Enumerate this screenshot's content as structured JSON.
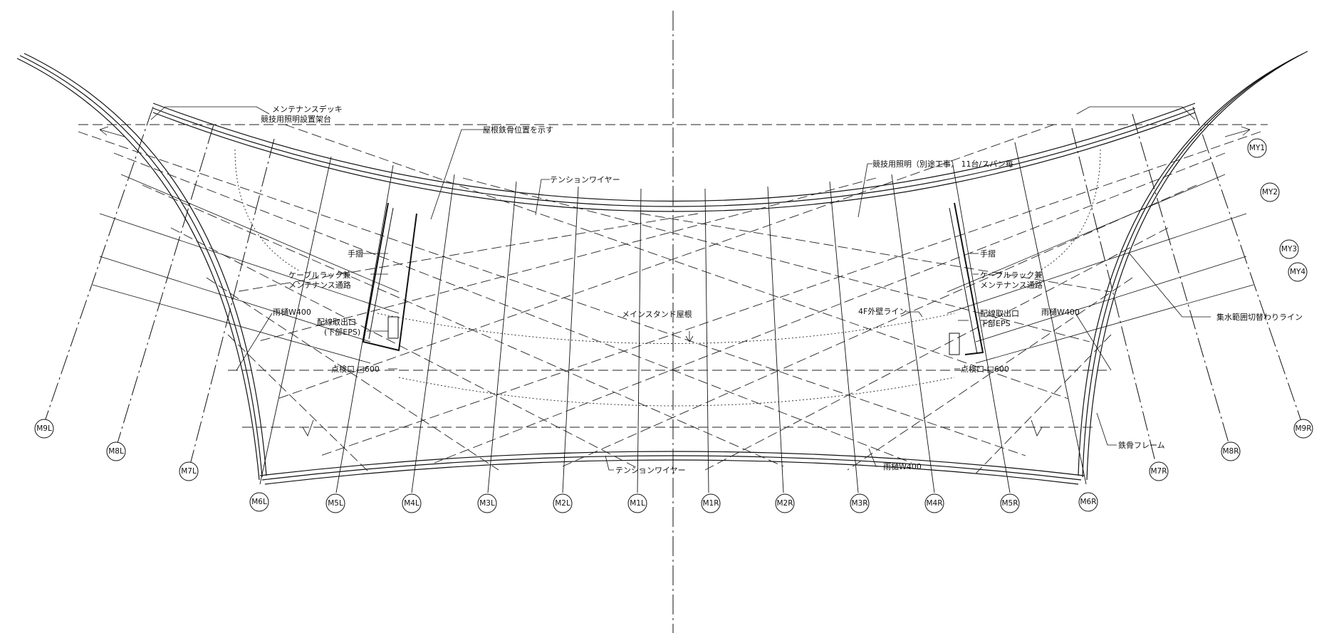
{
  "grid_bubbles": {
    "bottom": [
      "M6L",
      "M5L",
      "M4L",
      "M3L",
      "M2L",
      "M1L",
      "M1R",
      "M2R",
      "M3R",
      "M4R",
      "M5R",
      "M6R"
    ],
    "left_outer": [
      "M9L",
      "M8L",
      "M7L"
    ],
    "right_outer": [
      "M7R",
      "M8R",
      "M9R"
    ],
    "right_side": [
      "MY1",
      "MY2",
      "MY3",
      "MY4"
    ]
  },
  "labels": {
    "maintenance_deck_1": "メンテナンスデッキ",
    "maintenance_deck_2": "競技用照明設置架台",
    "roof_steel": "屋根鉄骨位置を示す",
    "tension_wire_top": "テンションワイヤー",
    "lighting": "競技用照明（別途工事） 11台/スパン毎",
    "handrail_left": "手摺",
    "cable_rack_left_1": "ケーブルラック兼",
    "cable_rack_left_2": "メンテナンス通路",
    "gutter_left": "雨樋W400",
    "wiring_left_1": "配線取出口",
    "wiring_left_2": "(下部EPS)",
    "inspection_left": "点検口 □600",
    "main_stand_roof": "メインスタンド屋根",
    "wall_4f": "4F外壁ライン",
    "handrail_right": "手摺",
    "cable_rack_right_1": "ケーブルラック兼",
    "cable_rack_right_2": "メンテナンス通路",
    "wiring_right_1": "配線取出口",
    "wiring_right_2": "下部EPS",
    "gutter_right": "雨樋W400",
    "inspection_right": "点検口 □600",
    "catchment": "集水範囲切替わりライン",
    "steel_frame": "鉄骨フレーム",
    "tension_wire_bottom": "テンションワイヤー",
    "gutter_bottom": "雨樋W400"
  }
}
